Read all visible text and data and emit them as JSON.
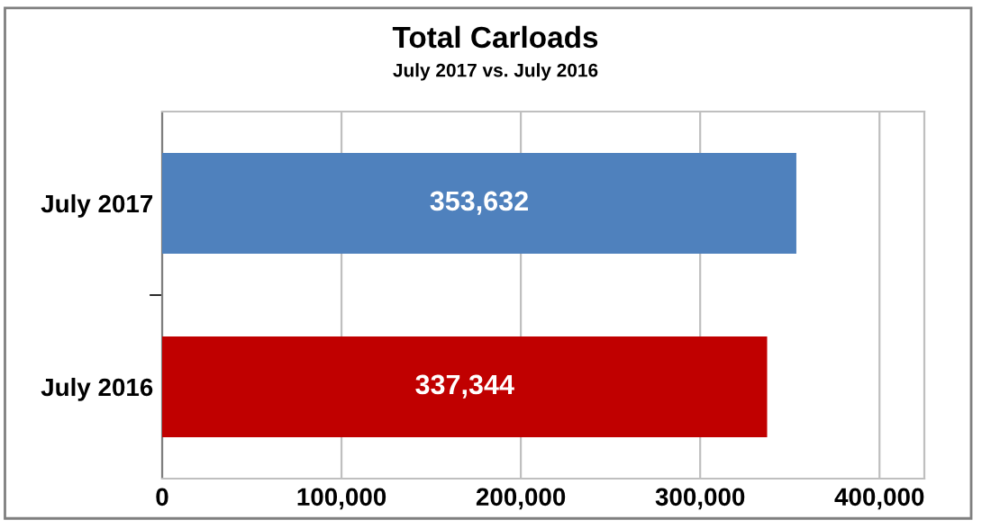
{
  "chart_data": {
    "type": "bar",
    "orientation": "horizontal",
    "title": "Total Carloads",
    "subtitle": "July 2017 vs. July 2016",
    "categories": [
      "July 2017",
      "July 2016"
    ],
    "values": [
      353632,
      337344
    ],
    "colors": [
      "#4f81bd",
      "#c00000"
    ],
    "value_labels": [
      "353,632",
      "337,344"
    ],
    "xlim": [
      0,
      425000
    ],
    "xticks": [
      {
        "value": 0,
        "label": "0"
      },
      {
        "value": 100000,
        "label": "100,000"
      },
      {
        "value": 200000,
        "label": "200,000"
      },
      {
        "value": 300000,
        "label": "300,000"
      },
      {
        "value": 400000,
        "label": "400,000"
      }
    ],
    "grid": "x"
  }
}
